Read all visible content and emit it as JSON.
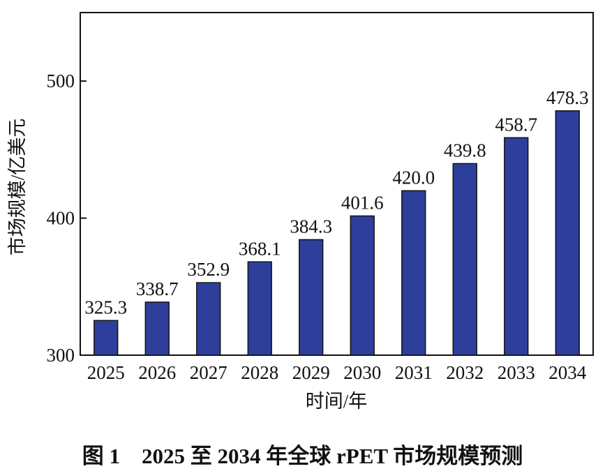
{
  "chart_data": {
    "type": "bar",
    "categories": [
      "2025",
      "2026",
      "2027",
      "2028",
      "2029",
      "2030",
      "2031",
      "2032",
      "2033",
      "2034"
    ],
    "values": [
      325.3,
      338.7,
      352.9,
      368.1,
      384.3,
      401.6,
      420.0,
      439.8,
      458.7,
      478.3
    ],
    "value_labels": [
      "325.3",
      "338.7",
      "352.9",
      "368.1",
      "384.3",
      "401.6",
      "420.0",
      "439.8",
      "458.7",
      "478.3"
    ],
    "xlabel": "时间/年",
    "ylabel": "市场规模/亿美元",
    "ylim": [
      300,
      550
    ],
    "yticks": [
      300,
      400,
      500
    ],
    "grid": false,
    "bar_color": "#2e3f9b"
  },
  "caption": "图 1　2025 至 2034 年全球 rPET 市场规模预测"
}
